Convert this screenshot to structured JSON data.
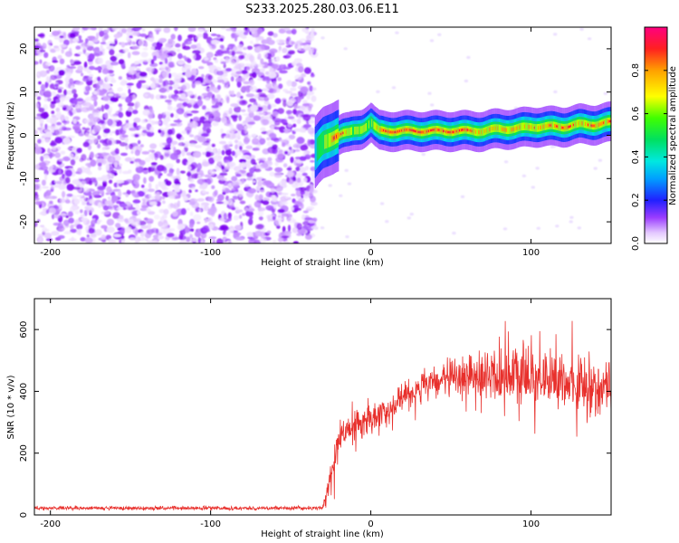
{
  "figure": {
    "title": "S233.2025.280.03.06.E11"
  },
  "chart_data": [
    {
      "type": "heatmap",
      "title": "S233.2025.280.03.06.E11",
      "xlabel": "Height of straight line (km)",
      "ylabel": "Frequency (Hz)",
      "xlim": [
        -210,
        150
      ],
      "ylim": [
        -25,
        25
      ],
      "x_ticks": [
        -200,
        -100,
        0,
        100
      ],
      "x_tick_labels": [
        "-200",
        "-100",
        "0",
        "100"
      ],
      "y_ticks": [
        -20,
        -10,
        0,
        10,
        20
      ],
      "y_tick_labels": [
        "-20",
        "-10",
        "0",
        "10",
        "20"
      ],
      "noise_region_x": [
        -210,
        -35
      ],
      "signal_track": {
        "x": [
          -35,
          -30,
          -26,
          -22,
          -18,
          -14,
          -10,
          -6,
          -2,
          0,
          2,
          5,
          10,
          20,
          30,
          40,
          50,
          60,
          70,
          80,
          90,
          100,
          110,
          120,
          130,
          140,
          150
        ],
        "freq": [
          -4,
          -2,
          -1,
          0,
          0.5,
          0.5,
          1,
          1.5,
          2.5,
          3,
          2,
          1,
          1,
          1,
          1,
          1,
          1,
          1,
          1,
          1.5,
          1.5,
          2,
          2,
          2,
          2.5,
          2.5,
          3
        ],
        "peak_amplitude": [
          0.4,
          0.6,
          0.7,
          0.85,
          0.9,
          0.7,
          0.6,
          0.65,
          0.6,
          0.55,
          0.6,
          0.8,
          0.95,
          0.9,
          0.95,
          0.85,
          0.9,
          0.85,
          0.7,
          0.75,
          0.7,
          0.8,
          0.8,
          0.85,
          0.75,
          0.85,
          0.8
        ]
      },
      "colorbar": {
        "label": "Normalized spectral amplitude",
        "range": [
          0,
          1
        ],
        "ticks": [
          0.0,
          0.2,
          0.4,
          0.6,
          0.8
        ],
        "tick_labels": [
          "0.0",
          "0.2",
          "0.4",
          "0.6",
          "0.8"
        ]
      }
    },
    {
      "type": "line",
      "xlabel": "Height of straight line (km)",
      "ylabel": "SNR (10 * v/v)",
      "xlim": [
        -210,
        150
      ],
      "ylim": [
        0,
        700
      ],
      "x_ticks": [
        -200,
        -100,
        0,
        100
      ],
      "x_tick_labels": [
        "-200",
        "-100",
        "0",
        "100"
      ],
      "y_ticks": [
        0,
        200,
        400,
        600
      ],
      "y_tick_labels": [
        "0",
        "200",
        "400",
        "600"
      ],
      "series": [
        {
          "name": "SNR",
          "color": "#e8302c",
          "envelope_x": [
            -210,
            -30,
            -25,
            -20,
            -15,
            -10,
            0,
            10,
            20,
            30,
            40,
            50,
            60,
            70,
            80,
            90,
            100,
            110,
            120,
            130,
            140,
            150
          ],
          "envelope_mean": [
            22,
            22,
            120,
            250,
            270,
            290,
            310,
            340,
            380,
            410,
            430,
            440,
            450,
            450,
            450,
            450,
            445,
            440,
            430,
            420,
            410,
            420
          ],
          "envelope_spread": [
            10,
            10,
            110,
            80,
            70,
            70,
            70,
            70,
            70,
            70,
            80,
            90,
            100,
            110,
            130,
            140,
            140,
            140,
            140,
            150,
            150,
            120
          ]
        }
      ]
    }
  ],
  "colors": {
    "signal_line": "#e8302c",
    "noise_purple": "#7700ee"
  }
}
